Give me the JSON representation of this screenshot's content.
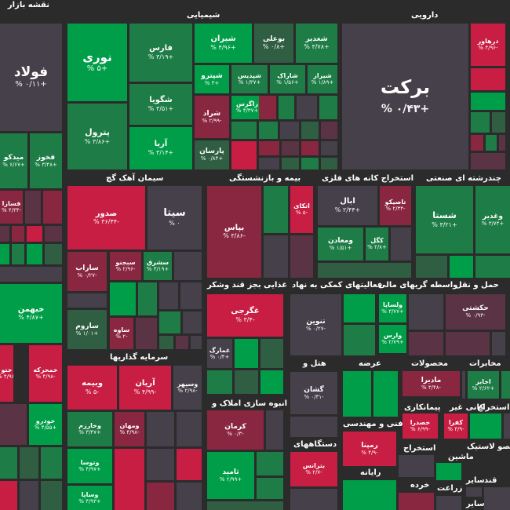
{
  "colors": {
    "bg": "#2b2b2b",
    "g3": "#009e48",
    "g2": "#1e7d47",
    "g1": "#2f5e42",
    "n": "#454049",
    "r1": "#5a3344",
    "r2": "#8a2740",
    "r3": "#c81e43"
  },
  "sectors": [
    {
      "id": "market",
      "title": "نقشه بازار"
    },
    {
      "id": "chemical",
      "title": "شیمیایی"
    },
    {
      "id": "pharma",
      "title": "دارویی"
    },
    {
      "id": "cement",
      "title": "سیمان آهک گچ"
    },
    {
      "id": "insurance",
      "title": "بیمه و بازنشستگی"
    },
    {
      "id": "metal_mining",
      "title": "استخراج کانه های فلزی"
    },
    {
      "id": "multi",
      "title": "چندرشته ای صنعتی"
    },
    {
      "id": "food",
      "title": "غذایی بجز قند وشکر"
    },
    {
      "id": "finance",
      "title": "فعالیتهای کمکی به نهاد"
    },
    {
      "id": "fin_inter",
      "title": "واسطه گریهای مالی"
    },
    {
      "id": "transport",
      "title": "حمل و نقل"
    },
    {
      "id": "invest",
      "title": "سرمایه گذاریها"
    },
    {
      "id": "hotel",
      "title": "هتل و"
    },
    {
      "id": "supply",
      "title": "عرضه"
    },
    {
      "id": "products",
      "title": "محصولات"
    },
    {
      "id": "telecom",
      "title": "مخابرات"
    },
    {
      "id": "mass",
      "title": "انبوه سازی املاک و"
    },
    {
      "id": "contract",
      "title": "پیمانکاری"
    },
    {
      "id": "mine",
      "title": "کانی غیر"
    },
    {
      "id": "extract",
      "title": "استخراج"
    },
    {
      "id": "eng",
      "title": "فنی و مهندسی"
    },
    {
      "id": "devices",
      "title": "دستگاههای"
    },
    {
      "id": "plastic",
      "title": "محصو لاستیک"
    },
    {
      "id": "extract2",
      "title": "استخراج"
    },
    {
      "id": "machinery",
      "title": "ماشین"
    },
    {
      "id": "computer",
      "title": "رایانه"
    },
    {
      "id": "retail",
      "title": "خرده"
    },
    {
      "id": "agri",
      "title": "زراعت"
    },
    {
      "id": "other",
      "title": "سایر"
    },
    {
      "id": "sugar",
      "title": "قند"
    },
    {
      "id": "other2",
      "title": "سایر"
    }
  ],
  "tiles": [
    {
      "id": "foolad",
      "symbol": "فولاد",
      "change": "+۰/۱۱ %"
    },
    {
      "id": "nouri",
      "symbol": "نوری",
      "change": "+۵ %"
    },
    {
      "id": "fars",
      "symbol": "فارس",
      "change": "+۳/۱۹ %"
    },
    {
      "id": "shiran",
      "symbol": "شیران",
      "change": "+۴/۹۶ %"
    },
    {
      "id": "boali",
      "symbol": "بوعلی",
      "change": "+۰/۸ %"
    },
    {
      "id": "shghadir",
      "symbol": "شغدیر",
      "change": "+۳/۷۸ %"
    },
    {
      "id": "barekat",
      "symbol": "برکت",
      "change": "+۰/۴۳ %"
    },
    {
      "id": "daharou",
      "symbol": "درهاور",
      "change": "-۴/۹۶ %"
    },
    {
      "id": "shegouya",
      "symbol": "شگویا",
      "change": "+۳/۵۱ %"
    },
    {
      "id": "shetran",
      "symbol": "شپترو",
      "change": "+۳ %"
    },
    {
      "id": "shedis",
      "symbol": "شپدیس",
      "change": "+۱/۳۷ %"
    },
    {
      "id": "sharak",
      "symbol": "شاراک",
      "change": "+۱/۵۶ %"
    },
    {
      "id": "shiraz",
      "symbol": "شیراز",
      "change": "+۱/۸۹ %"
    },
    {
      "id": "zagros",
      "symbol": "زاگرس",
      "change": "+۳/۳۷ %"
    },
    {
      "id": "petrol",
      "symbol": "پترول",
      "change": "+۳/۸۶ %"
    },
    {
      "id": "arya",
      "symbol": "آریا",
      "change": "+۳/۱۴ %"
    },
    {
      "id": "sharad",
      "symbol": "شراد",
      "change": "-۲/۹۹ %"
    },
    {
      "id": "parsan",
      "symbol": "پارسان",
      "change": "+۰/۸۴ %"
    },
    {
      "id": "midco",
      "symbol": "میدکو",
      "change": "+۶/۶۷ %"
    },
    {
      "id": "fakhouz",
      "symbol": "فخوز",
      "change": "+۳/۴۸ %"
    },
    {
      "id": "fasazi",
      "symbol": "فسازا",
      "change": "-۴/۳۴ %"
    },
    {
      "id": "sdor",
      "symbol": "صدور",
      "change": "-۳۶/۴۴ %"
    },
    {
      "id": "sita",
      "symbol": "سیتا",
      "change": "۰ %"
    },
    {
      "id": "bapas",
      "symbol": "بپاس",
      "change": "-۳/۸۶ %"
    },
    {
      "id": "atekai",
      "symbol": "اتکای",
      "change": "-۵ %"
    },
    {
      "id": "abal",
      "symbol": "ابال",
      "change": "+۲/۴۴ %"
    },
    {
      "id": "tasico",
      "symbol": "تاصیکو",
      "change": "-۲/۳۴ %"
    },
    {
      "id": "shasta",
      "symbol": "شستا",
      "change": "+۳/۲۱ %"
    },
    {
      "id": "vghadir",
      "symbol": "وغدیر",
      "change": "+۳/۷۴ %"
    },
    {
      "id": "madan",
      "symbol": "ومعادن",
      "change": "+۱/۵۱ %"
    },
    {
      "id": "kegal",
      "symbol": "کگل",
      "change": "+۲/۸ %"
    },
    {
      "id": "sarab",
      "symbol": "ساراب",
      "change": "-۰/۲۷ %"
    },
    {
      "id": "sbijou",
      "symbol": "سبجنو",
      "change": "-۲/۹۶ %"
    },
    {
      "id": "smashr",
      "symbol": "سشرق",
      "change": "+۳/۱۹ %"
    },
    {
      "id": "kheman",
      "symbol": "خبهمن",
      "change": "+۴/۸۷ %"
    },
    {
      "id": "saroom",
      "symbol": "ساروم",
      "change": "+۱/۰۱ %"
    },
    {
      "id": "saveh",
      "symbol": "ساوه",
      "change": "-۲ %"
    },
    {
      "id": "ghgorji",
      "symbol": "غگرجی",
      "change": "-۳/۴ %"
    },
    {
      "id": "tonin",
      "symbol": "تنوین",
      "change": "-۰/۲۷ %"
    },
    {
      "id": "vlsapa",
      "symbol": "ولساپا",
      "change": "+۳/۷۷ %"
    },
    {
      "id": "vares",
      "symbol": "وارس",
      "change": "+۲/۷۹ %"
    },
    {
      "id": "hakeshti",
      "symbol": "حکشتی",
      "change": "-۰/۹۳ %"
    },
    {
      "id": "ghamarg",
      "symbol": "غمارگ",
      "change": "+۰/۴ %"
    },
    {
      "id": "khotoug",
      "symbol": "ختو",
      "change": "-۴/۹۶ %"
    },
    {
      "id": "khamrah",
      "symbol": "خمحرکه",
      "change": "-۴/۹۸ %"
    },
    {
      "id": "vbime",
      "symbol": "وبیمه",
      "change": "-۵ %"
    },
    {
      "id": "arian",
      "symbol": "آریان",
      "change": "-۴/۹۹ %"
    },
    {
      "id": "vsehr",
      "symbol": "وسپهر",
      "change": "-۲/۹۸ %"
    },
    {
      "id": "gashan",
      "symbol": "گشان",
      "change": "-۰/۳۱ %"
    },
    {
      "id": "madira",
      "symbol": "مادیرا",
      "change": "-۳/۴۸ %"
    },
    {
      "id": "akhabar",
      "symbol": "اخابر",
      "change": "+۲/۶۲ %"
    },
    {
      "id": "khodro",
      "symbol": "خودرو",
      "change": "+۴/۵۵ %"
    },
    {
      "id": "vkharazm",
      "symbol": "وخارزم",
      "change": "+۳/۴۷ %"
    },
    {
      "id": "vmehan",
      "symbol": "ومهان",
      "change": "-۴/۹۸ %"
    },
    {
      "id": "kerman",
      "symbol": "کرمان",
      "change": "-۰/۳ %"
    },
    {
      "id": "khasdra",
      "symbol": "خصدرا",
      "change": "-۶/۹۹ %"
    },
    {
      "id": "kefra",
      "symbol": "کفرا",
      "change": "-۴/۹ %"
    },
    {
      "id": "remapna",
      "symbol": "رمپنا",
      "change": "-۴/۹ %"
    },
    {
      "id": "vtousa",
      "symbol": "وتوسا",
      "change": "+۴/۹۷ %"
    },
    {
      "id": "btrans",
      "symbol": "بترانس",
      "change": "-۲/۷ %"
    },
    {
      "id": "thamid",
      "symbol": "ثامید",
      "change": "+۲/۹۹ %"
    },
    {
      "id": "vsapa",
      "symbol": "وساپا",
      "change": "+۴/۹۳ %"
    }
  ]
}
